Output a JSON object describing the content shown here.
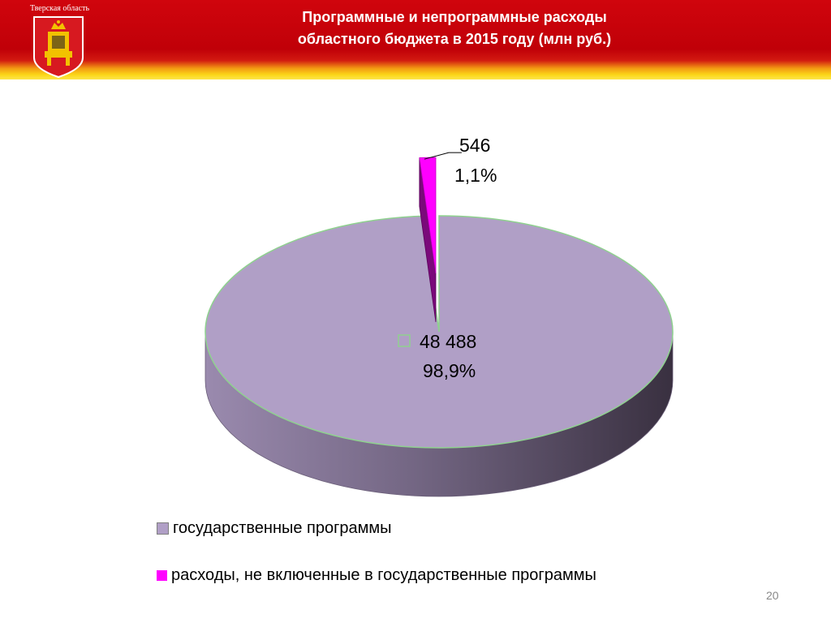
{
  "header": {
    "region_name": "Тверская область",
    "title_line1": "Программные и непрограммные расходы",
    "title_line2": "областного бюджета в 2015 году  (млн руб.)"
  },
  "colors": {
    "header_red": "#c00008",
    "header_yellow": "#fbd617",
    "emblem_red": "#d71920",
    "emblem_gold": "#f2c200"
  },
  "icons": {
    "emblem": "tver-coat-of-arms-icon"
  },
  "chart_data": {
    "type": "pie",
    "style": "3d-exploded",
    "categories": [
      "государственные программы",
      "расходы, не включенные в государственные программы"
    ],
    "values": [
      48488,
      546
    ],
    "value_labels": [
      "48 488",
      "546"
    ],
    "percent_labels": [
      "98,9%",
      "1,1%"
    ],
    "colors": [
      "#b09fc6",
      "#ff00ff"
    ],
    "legend_position": "bottom"
  },
  "footer": {
    "page_number": "20"
  }
}
